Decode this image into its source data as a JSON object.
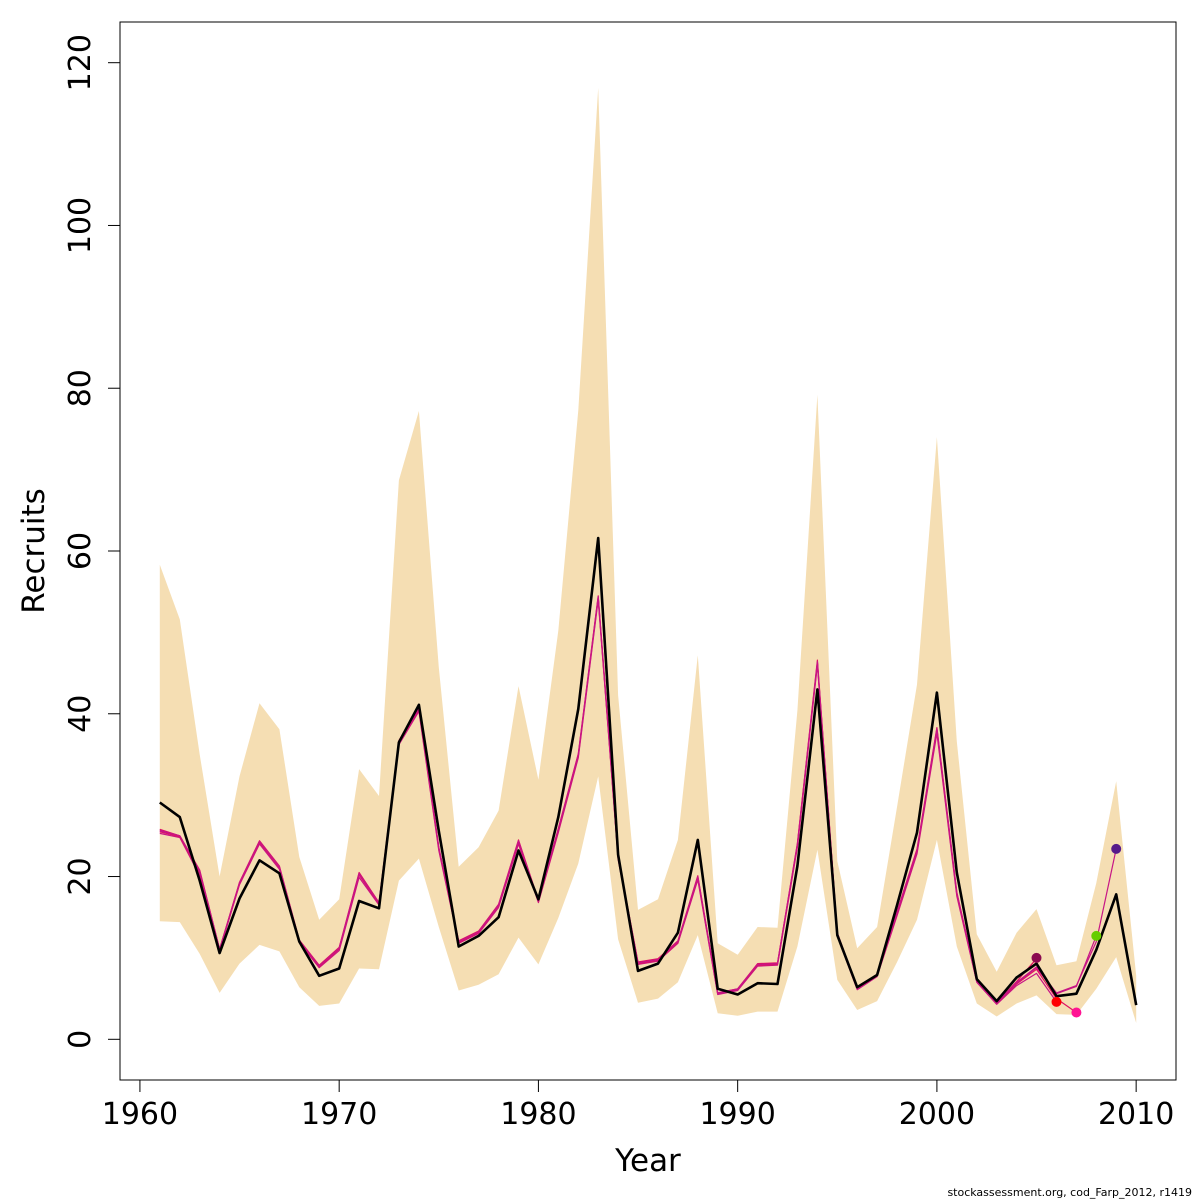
{
  "chart_data": {
    "type": "line",
    "xlabel": "Year",
    "ylabel": "Recruits",
    "caption": "stockassessment.org, cod_Farp_2012, r1419",
    "xlim": [
      1959,
      2012
    ],
    "ylim": [
      -5,
      125
    ],
    "x_ticks": [
      1960,
      1970,
      1980,
      1990,
      2000,
      2010
    ],
    "y_ticks": [
      0,
      20,
      40,
      60,
      80,
      100,
      120
    ],
    "grid": false,
    "legend": "none",
    "colors": {
      "band": "#f5deb3",
      "main": "#000000",
      "retro": "#e0115f",
      "retro_alt": "#c71585"
    },
    "confidence_band": {
      "x": [
        1961,
        1962,
        1963,
        1964,
        1965,
        1966,
        1967,
        1968,
        1969,
        1970,
        1971,
        1972,
        1973,
        1974,
        1975,
        1976,
        1977,
        1978,
        1979,
        1980,
        1981,
        1982,
        1983,
        1984,
        1985,
        1986,
        1987,
        1988,
        1989,
        1990,
        1991,
        1992,
        1993,
        1994,
        1995,
        1996,
        1997,
        1998,
        1999,
        2000,
        2001,
        2002,
        2003,
        2004,
        2005,
        2006,
        2007,
        2008,
        2009,
        2010
      ],
      "lower": [
        14.5,
        14.4,
        10.5,
        5.7,
        9.3,
        11.6,
        10.8,
        6.4,
        4.1,
        4.4,
        8.7,
        8.6,
        19.5,
        22.2,
        13.8,
        6.0,
        6.7,
        8.0,
        12.5,
        9.2,
        14.9,
        21.6,
        32.3,
        12.3,
        4.5,
        5.0,
        7.0,
        12.8,
        3.2,
        2.9,
        3.4,
        3.4,
        11.4,
        23.3,
        7.3,
        3.6,
        4.7,
        9.5,
        14.7,
        24.5,
        11.4,
        4.4,
        2.8,
        4.4,
        5.4,
        3.1,
        3.0,
        6.2,
        10.1,
        2.0
      ],
      "upper": [
        58.3,
        51.6,
        35.0,
        20.0,
        32.3,
        41.3,
        38.1,
        22.4,
        14.7,
        17.2,
        33.2,
        29.9,
        68.7,
        77.2,
        45.7,
        21.2,
        23.6,
        28.1,
        43.4,
        31.9,
        50.2,
        77.3,
        116.9,
        42.3,
        15.9,
        17.2,
        24.5,
        47.2,
        11.8,
        10.4,
        13.8,
        13.7,
        40.4,
        79.2,
        21.9,
        11.2,
        13.8,
        28.6,
        43.6,
        74.0,
        36.6,
        12.9,
        8.3,
        13.1,
        16.0,
        9.1,
        9.6,
        19.2,
        31.7,
        7.8
      ]
    },
    "series": [
      {
        "x": [
          1961,
          1962,
          1963,
          1964,
          1965,
          1966,
          1967,
          1968,
          1969,
          1970,
          1971,
          1972,
          1973,
          1974,
          1975,
          1976,
          1977,
          1978,
          1979,
          1980,
          1981,
          1982,
          1983,
          1984,
          1985,
          1986,
          1987,
          1988,
          1989,
          1990,
          1991,
          1992,
          1993,
          1994,
          1995,
          1996,
          1997,
          1998,
          1999,
          2000,
          2001,
          2002,
          2003,
          2004,
          2005,
          2006,
          2007,
          2008,
          2009,
          2010
        ],
        "values": [
          29.1,
          27.3,
          19.5,
          10.6,
          17.3,
          22.0,
          20.4,
          12.0,
          7.8,
          8.7,
          17.0,
          16.1,
          36.5,
          41.1,
          25.6,
          11.4,
          12.7,
          15.0,
          23.2,
          17.2,
          27.3,
          40.6,
          61.6,
          22.7,
          8.4,
          9.3,
          13.1,
          24.5,
          6.2,
          5.5,
          6.9,
          6.8,
          21.3,
          43.0,
          12.8,
          6.4,
          7.9,
          16.5,
          25.4,
          42.6,
          20.5,
          7.4,
          4.7,
          7.6,
          9.3,
          5.3,
          5.6,
          11.0,
          17.8,
          4.2
        ]
      },
      {
        "x": [
          1961,
          1962,
          1963,
          1964,
          1965,
          1966,
          1967,
          1968,
          1969,
          1970,
          1971,
          1972,
          1973,
          1974,
          1975,
          1976,
          1977,
          1978,
          1979,
          1980,
          1981,
          1982,
          1983,
          1984,
          1985,
          1986,
          1987,
          1988,
          1989,
          1990,
          1991,
          1992,
          1993,
          1994,
          1995,
          1996,
          1997,
          1998,
          1999,
          2000,
          2001,
          2002,
          2003,
          2004,
          2005
        ],
        "values": [
          25.8,
          25.0,
          20.8,
          11.1,
          19.3,
          24.4,
          21.3,
          12.2,
          9.1,
          11.3,
          20.5,
          16.8,
          36.7,
          40.8,
          23.6,
          12.1,
          13.3,
          16.6,
          24.5,
          17.1,
          25.9,
          35.1,
          54.5,
          22.5,
          9.5,
          9.9,
          12.1,
          20.1,
          5.7,
          6.2,
          9.3,
          9.4,
          24.1,
          46.6,
          13.1,
          6.3,
          8.0,
          15.7,
          23.4,
          38.3,
          18.1,
          7.2,
          4.5,
          7.1,
          9.9
        ]
      },
      {
        "x": [
          1961,
          1962,
          1963,
          1964,
          1965,
          1966,
          1967,
          1968,
          1969,
          1970,
          1971,
          1972,
          1973,
          1974,
          1975,
          1976,
          1977,
          1978,
          1979,
          1980,
          1981,
          1982,
          1983,
          1984,
          1985,
          1986,
          1987,
          1988,
          1989,
          1990,
          1991,
          1992,
          1993,
          1994,
          1995,
          1996,
          1997,
          1998,
          1999,
          2000,
          2001,
          2002,
          2003,
          2004,
          2005,
          2006
        ],
        "values": [
          25.3,
          24.8,
          20.1,
          10.9,
          19.0,
          24.0,
          20.9,
          11.9,
          8.8,
          10.9,
          19.9,
          16.5,
          36.2,
          40.3,
          23.2,
          11.8,
          13.0,
          16.2,
          24.0,
          16.8,
          25.4,
          34.6,
          54.0,
          22.1,
          9.2,
          9.6,
          11.8,
          19.6,
          5.5,
          6.0,
          9.0,
          9.1,
          23.6,
          46.0,
          12.7,
          6.1,
          7.7,
          15.2,
          22.8,
          37.6,
          17.6,
          7.0,
          4.3,
          6.6,
          8.1,
          4.6
        ]
      },
      {
        "x": [
          1961,
          1962,
          1963,
          1964,
          1965,
          1966,
          1967,
          1968,
          1969,
          1970,
          1971,
          1972,
          1973,
          1974,
          1975,
          1976,
          1977,
          1978,
          1979,
          1980,
          1981,
          1982,
          1983,
          1984,
          1985,
          1986,
          1987,
          1988,
          1989,
          1990,
          1991,
          1992,
          1993,
          1994,
          1995,
          1996,
          1997,
          1998,
          1999,
          2000,
          2001,
          2002,
          2003,
          2004,
          2005,
          2006,
          2007
        ],
        "values": [
          25.5,
          24.9,
          20.4,
          11.0,
          19.1,
          24.2,
          21.1,
          12.0,
          8.9,
          11.1,
          20.2,
          16.6,
          36.4,
          40.5,
          23.4,
          11.9,
          13.1,
          16.4,
          24.2,
          16.9,
          25.6,
          34.8,
          54.2,
          22.3,
          9.3,
          9.7,
          11.9,
          19.8,
          5.6,
          6.1,
          9.1,
          9.2,
          23.8,
          46.2,
          12.9,
          6.2,
          7.8,
          15.4,
          23.0,
          37.9,
          17.8,
          7.1,
          4.4,
          6.8,
          8.6,
          5.0,
          3.3
        ]
      },
      {
        "x": [
          1961,
          1962,
          1963,
          1964,
          1965,
          1966,
          1967,
          1968,
          1969,
          1970,
          1971,
          1972,
          1973,
          1974,
          1975,
          1976,
          1977,
          1978,
          1979,
          1980,
          1981,
          1982,
          1983,
          1984,
          1985,
          1986,
          1987,
          1988,
          1989,
          1990,
          1991,
          1992,
          1993,
          1994,
          1995,
          1996,
          1997,
          1998,
          1999,
          2000,
          2001,
          2002,
          2003,
          2004,
          2005,
          2006,
          2007,
          2008
        ],
        "values": [
          25.6,
          25.0,
          20.6,
          11.0,
          19.2,
          24.3,
          21.2,
          12.1,
          9.0,
          11.2,
          20.3,
          16.7,
          36.5,
          40.6,
          23.5,
          12.0,
          13.2,
          16.5,
          24.3,
          17.0,
          25.7,
          34.9,
          54.3,
          22.4,
          9.4,
          9.8,
          12.0,
          19.9,
          5.6,
          6.1,
          9.2,
          9.3,
          23.9,
          46.3,
          13.0,
          6.2,
          7.9,
          15.5,
          23.1,
          38.0,
          17.9,
          7.1,
          4.4,
          6.9,
          8.8,
          5.6,
          6.5,
          12.7
        ]
      },
      {
        "x": [
          1961,
          1962,
          1963,
          1964,
          1965,
          1966,
          1967,
          1968,
          1969,
          1970,
          1971,
          1972,
          1973,
          1974,
          1975,
          1976,
          1977,
          1978,
          1979,
          1980,
          1981,
          1982,
          1983,
          1984,
          1985,
          1986,
          1987,
          1988,
          1989,
          1990,
          1991,
          1992,
          1993,
          1994,
          1995,
          1996,
          1997,
          1998,
          1999,
          2000,
          2001,
          2002,
          2003,
          2004,
          2005,
          2006,
          2007,
          2008,
          2009
        ],
        "values": [
          25.7,
          25.0,
          20.7,
          11.1,
          19.2,
          24.3,
          21.2,
          12.1,
          9.0,
          11.2,
          20.4,
          16.7,
          36.6,
          40.7,
          23.5,
          12.0,
          13.2,
          16.5,
          24.4,
          17.0,
          25.8,
          35.0,
          54.4,
          22.4,
          9.4,
          9.8,
          12.0,
          20.0,
          5.7,
          6.2,
          9.2,
          9.3,
          24.0,
          46.4,
          13.0,
          6.3,
          7.9,
          15.6,
          23.2,
          38.2,
          18.0,
          7.1,
          4.5,
          7.0,
          8.9,
          5.7,
          6.6,
          12.0,
          23.4
        ]
      }
    ],
    "endpoints": [
      {
        "x": 2005,
        "y": 10.0,
        "color": "#8b0a50"
      },
      {
        "x": 2006,
        "y": 4.6,
        "color": "#ff0000"
      },
      {
        "x": 2007,
        "y": 3.3,
        "color": "#ff1493"
      },
      {
        "x": 2008,
        "y": 12.7,
        "color": "#66cd00"
      },
      {
        "x": 2009,
        "y": 23.4,
        "color": "#551a8b"
      }
    ]
  }
}
